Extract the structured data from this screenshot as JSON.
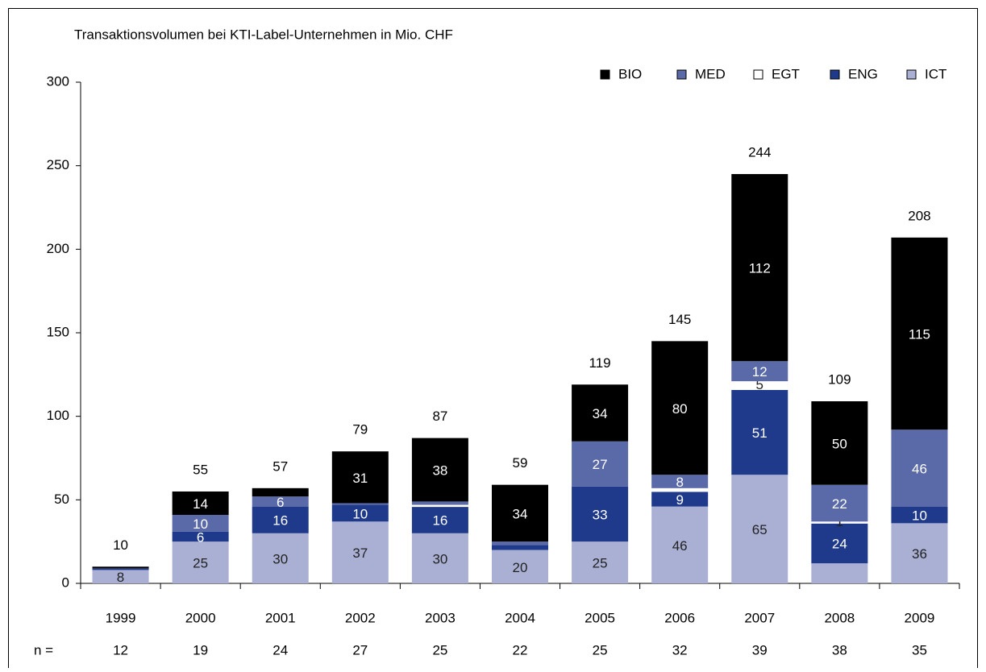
{
  "chart_data": {
    "type": "stacked_bar",
    "title": "Transaktionsvolumen bei KTI-Label-Unternehmen in Mio. CHF",
    "categories": [
      "1999",
      "2000",
      "2001",
      "2002",
      "2003",
      "2004",
      "2005",
      "2006",
      "2007",
      "2008",
      "2009"
    ],
    "series": [
      {
        "name": "ICT",
        "color": "#aab0d4",
        "values": [
          8,
          25,
          30,
          37,
          30,
          20,
          25,
          46,
          65,
          12,
          36
        ],
        "value_labels": [
          "8",
          "25",
          "30",
          "37",
          "30",
          "20",
          "25",
          "46",
          "65",
          null,
          "36"
        ]
      },
      {
        "name": "ENG",
        "color": "#1f3a8a",
        "values": [
          1,
          6,
          16,
          10,
          16,
          3,
          33,
          9,
          51,
          24,
          10
        ],
        "value_labels": [
          null,
          "6",
          "16",
          "10",
          "16",
          null,
          "33",
          "9",
          "51",
          "24",
          "10"
        ]
      },
      {
        "name": "EGT",
        "color": "#ffffff",
        "values": [
          0,
          0,
          0,
          0,
          1,
          0,
          0,
          2,
          5,
          1,
          0
        ],
        "value_labels": [
          null,
          null,
          null,
          null,
          null,
          null,
          null,
          null,
          "5",
          "1",
          null
        ]
      },
      {
        "name": "MED",
        "color": "#5a6aa8",
        "values": [
          0,
          10,
          6,
          1,
          2,
          2,
          27,
          8,
          12,
          22,
          46
        ],
        "value_labels": [
          null,
          "10",
          "6",
          null,
          null,
          null,
          "27",
          "8",
          "12",
          "22",
          "46"
        ]
      },
      {
        "name": "BIO",
        "color": "#000000",
        "values": [
          1,
          14,
          5,
          31,
          38,
          34,
          34,
          80,
          112,
          50,
          115
        ],
        "value_labels": [
          null,
          "14",
          null,
          "31",
          "38",
          "34",
          "34",
          "80",
          "112",
          "50",
          "115"
        ]
      }
    ],
    "totals": [
      10,
      55,
      57,
      79,
      87,
      59,
      119,
      145,
      244,
      109,
      208
    ],
    "n_label": "n =",
    "n": [
      12,
      19,
      24,
      27,
      25,
      22,
      25,
      32,
      39,
      38,
      35
    ],
    "ylim": [
      0,
      300
    ],
    "yticks": [
      0,
      50,
      100,
      150,
      200,
      250,
      300
    ],
    "legend": "top-right"
  }
}
